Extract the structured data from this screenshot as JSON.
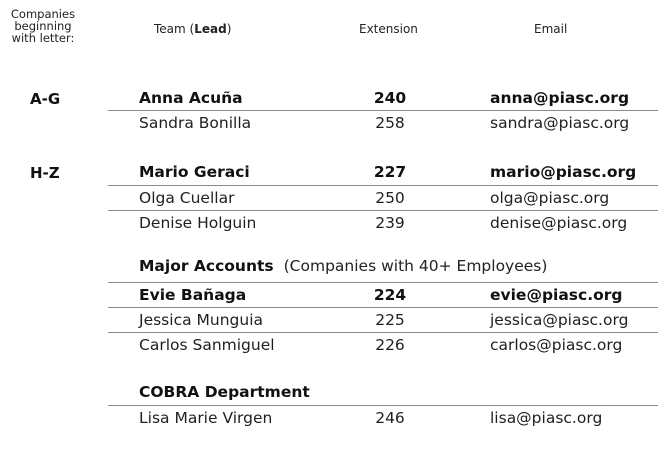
{
  "header": {
    "companies_line1": "Companies",
    "companies_line2": "beginning",
    "companies_line3": "with letter:",
    "team_prefix": "Team (",
    "team_lead": "Lead",
    "team_suffix": ")",
    "extension": "Extension",
    "email": "Email"
  },
  "groups": [
    {
      "label": "A-G",
      "rows": [
        {
          "name": "Anna Acuña",
          "ext": "240",
          "email": "anna@piasc.org"
        },
        {
          "name": "Sandra Bonilla",
          "ext": "258",
          "email": "sandra@piasc.org"
        }
      ]
    },
    {
      "label": "H-Z",
      "rows": [
        {
          "name": "Mario Geraci",
          "ext": "227",
          "email": "mario@piasc.org"
        },
        {
          "name": "Olga Cuellar",
          "ext": "250",
          "email": "olga@piasc.org"
        },
        {
          "name": "Denise Holguin",
          "ext": "239",
          "email": "denise@piasc.org"
        }
      ]
    }
  ],
  "major": {
    "title": "Major Accounts",
    "subtitle": "(Companies with 40+ Employees)",
    "rows": [
      {
        "name": "Evie Bañaga",
        "ext": "224",
        "email": "evie@piasc.org"
      },
      {
        "name": "Jessica Munguia",
        "ext": "225",
        "email": "jessica@piasc.org"
      },
      {
        "name": "Carlos Sanmiguel",
        "ext": "226",
        "email": "carlos@piasc.org"
      }
    ]
  },
  "cobra": {
    "title": "COBRA Department",
    "rows": [
      {
        "name": "Lisa Marie Virgen",
        "ext": "246",
        "email": "lisa@piasc.org"
      }
    ]
  }
}
